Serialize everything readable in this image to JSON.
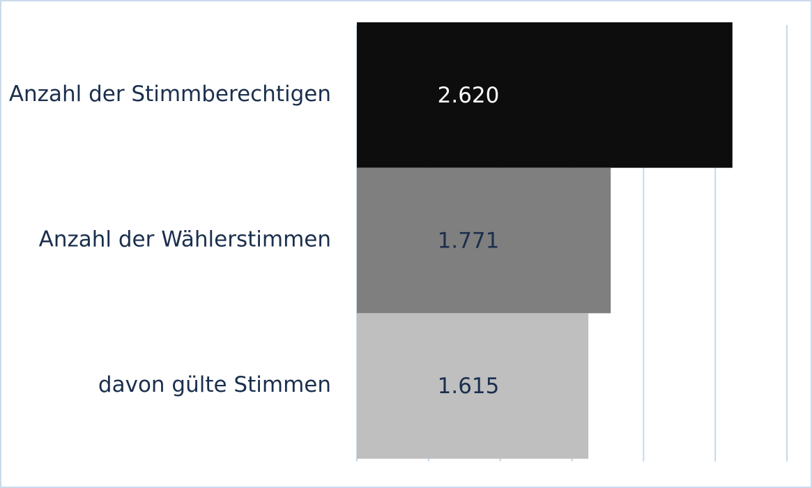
{
  "chart_data": {
    "type": "bar",
    "orientation": "horizontal",
    "categories": [
      "Anzahl der Stimmberechtigen",
      "Anzahl der Wählerstimmen",
      "davon gülte Stimmen"
    ],
    "values": [
      2620,
      1771,
      1615
    ],
    "value_labels": [
      "2.620",
      "1.771",
      "1.615"
    ],
    "colors": [
      "#0d0d0d",
      "#7f7f7f",
      "#bfbfbf"
    ],
    "xlim": [
      0,
      3000
    ],
    "xticks": [
      0,
      500,
      1000,
      1500,
      2000,
      2500,
      3000
    ],
    "grid": true
  }
}
